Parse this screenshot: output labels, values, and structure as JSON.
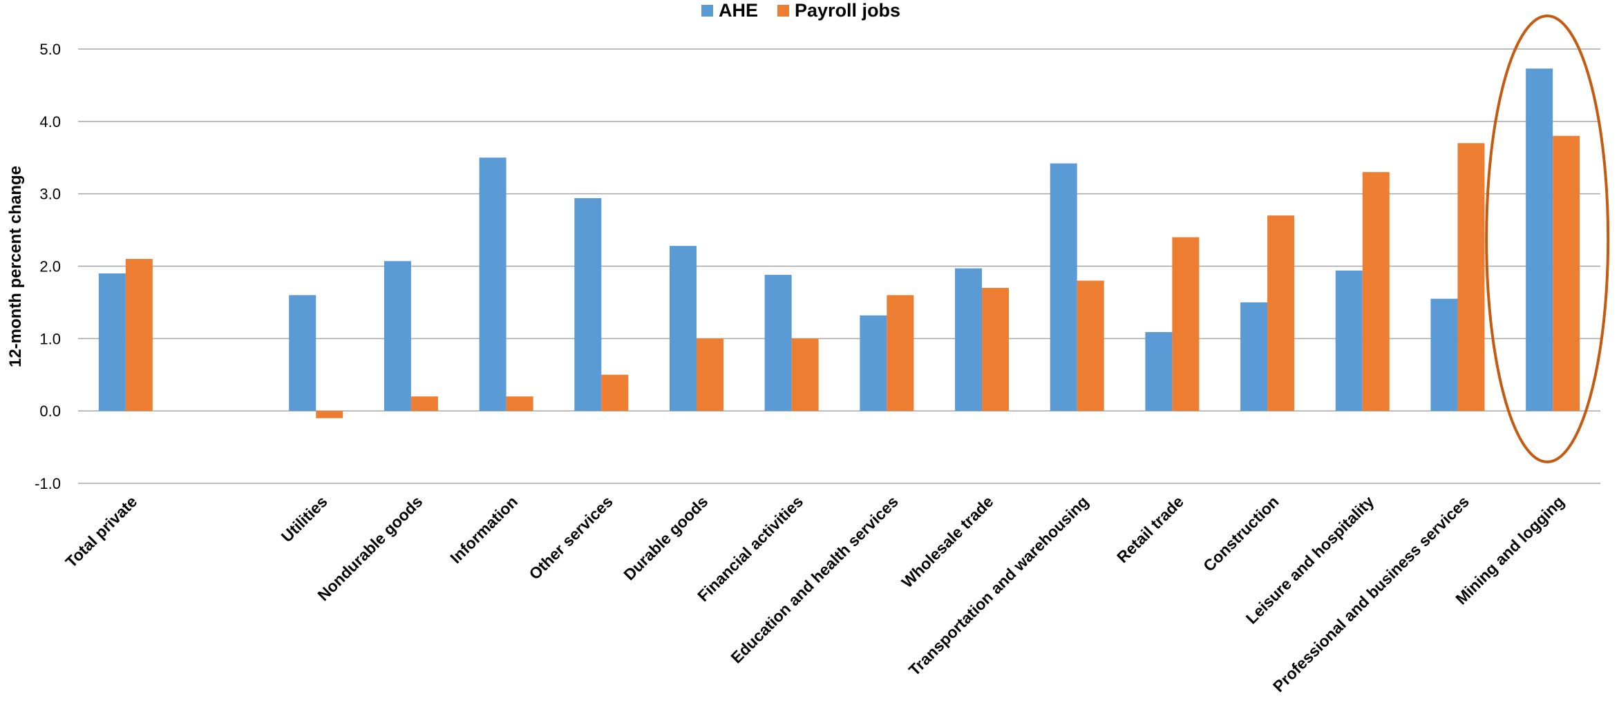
{
  "chart_data": {
    "type": "bar",
    "title": "",
    "xlabel": "",
    "ylabel": "12-month percent change",
    "ylim": [
      -1.0,
      5.0
    ],
    "yticks": [
      "5.0",
      "4.0",
      "3.0",
      "2.0",
      "1.0",
      "0.0",
      "-1.0"
    ],
    "grid": true,
    "legend_position": "top-center",
    "categories": [
      "Total private",
      "",
      "Utilities",
      "Nondurable goods",
      "Information",
      "Other services",
      "Durable goods",
      "Financial activities",
      "Education and health services",
      "Wholesale trade",
      "Transportation and warehousing",
      "Retail trade",
      "Construction",
      "Leisure and hospitality",
      "Professional and business services",
      "Mining and logging"
    ],
    "series": [
      {
        "name": "AHE",
        "color": "#5B9BD5",
        "values": [
          1.9,
          null,
          1.6,
          2.07,
          3.5,
          2.94,
          2.28,
          1.88,
          1.32,
          1.97,
          3.42,
          1.09,
          1.5,
          1.94,
          1.55,
          4.73
        ]
      },
      {
        "name": "Payroll jobs",
        "color": "#ED7D31",
        "values": [
          2.1,
          null,
          -0.1,
          0.2,
          0.2,
          0.5,
          1.0,
          1.0,
          1.6,
          1.7,
          1.8,
          2.4,
          2.7,
          3.3,
          3.7,
          3.8
        ]
      }
    ],
    "annotations": [
      {
        "type": "ellipse",
        "target_category": "Mining and logging",
        "color": "#C55A11"
      }
    ]
  }
}
